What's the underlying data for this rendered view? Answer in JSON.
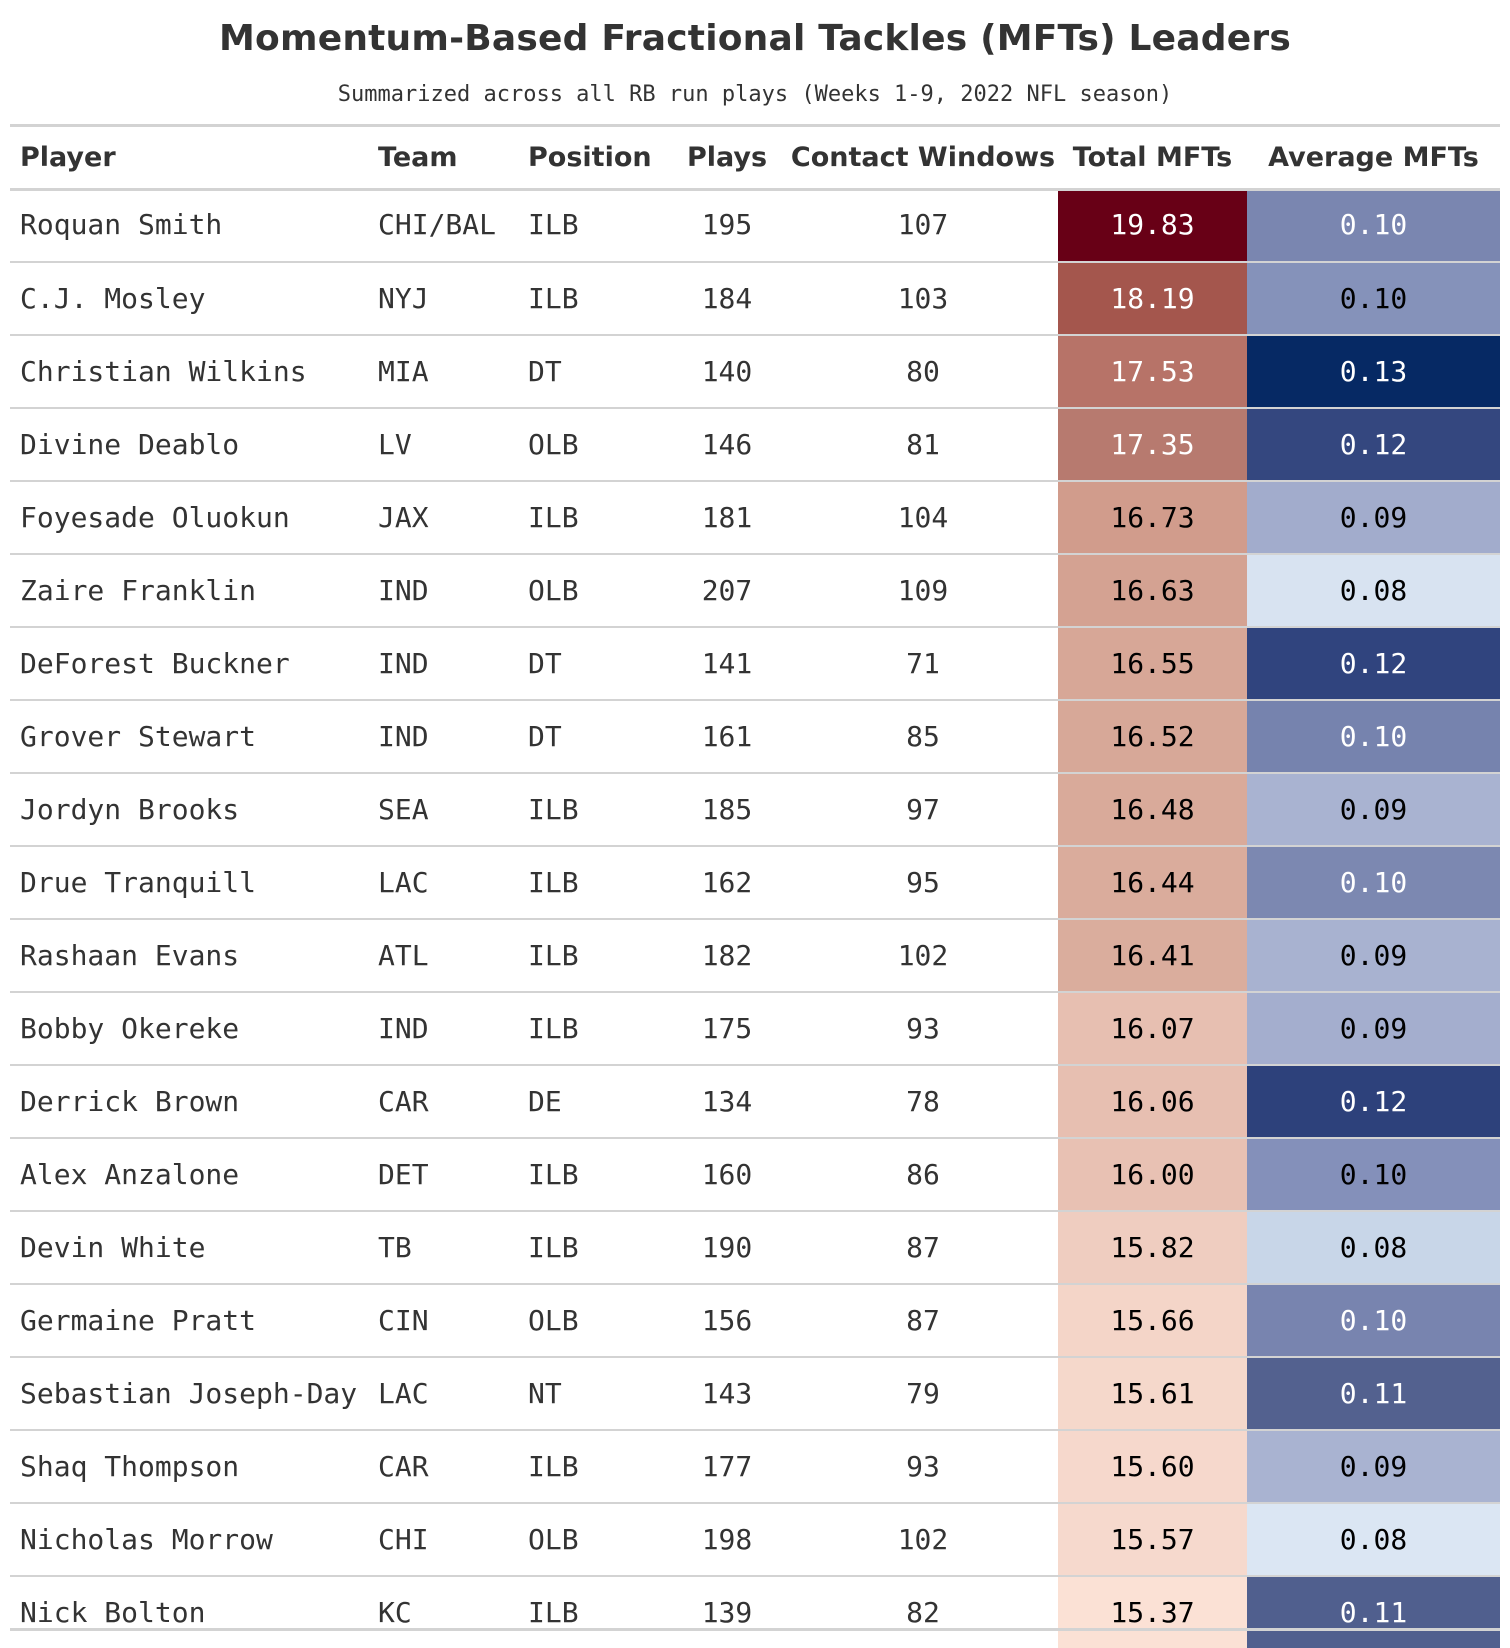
{
  "chart_data": {
    "type": "table",
    "title": "Momentum-Based Fractional Tackles (MFTs) Leaders",
    "subtitle": "Summarized across all RB run plays (Weeks 1-9, 2022 NFL season)",
    "columns": [
      "Player",
      "Team",
      "Position",
      "Plays",
      "Contact Windows",
      "Total MFTs",
      "Average MFTs"
    ],
    "rows": [
      {
        "player": "Roquan Smith",
        "team": "CHI/BAL",
        "position": "ILB",
        "plays": "195",
        "contact": "107",
        "total": "19.83",
        "avg": "0.10"
      },
      {
        "player": "C.J. Mosley",
        "team": "NYJ",
        "position": "ILB",
        "plays": "184",
        "contact": "103",
        "total": "18.19",
        "avg": "0.10"
      },
      {
        "player": "Christian Wilkins",
        "team": "MIA",
        "position": "DT",
        "plays": "140",
        "contact": "80",
        "total": "17.53",
        "avg": "0.13"
      },
      {
        "player": "Divine Deablo",
        "team": "LV",
        "position": "OLB",
        "plays": "146",
        "contact": "81",
        "total": "17.35",
        "avg": "0.12"
      },
      {
        "player": "Foyesade Oluokun",
        "team": "JAX",
        "position": "ILB",
        "plays": "181",
        "contact": "104",
        "total": "16.73",
        "avg": "0.09"
      },
      {
        "player": "Zaire Franklin",
        "team": "IND",
        "position": "OLB",
        "plays": "207",
        "contact": "109",
        "total": "16.63",
        "avg": "0.08"
      },
      {
        "player": "DeForest Buckner",
        "team": "IND",
        "position": "DT",
        "plays": "141",
        "contact": "71",
        "total": "16.55",
        "avg": "0.12"
      },
      {
        "player": "Grover Stewart",
        "team": "IND",
        "position": "DT",
        "plays": "161",
        "contact": "85",
        "total": "16.52",
        "avg": "0.10"
      },
      {
        "player": "Jordyn Brooks",
        "team": "SEA",
        "position": "ILB",
        "plays": "185",
        "contact": "97",
        "total": "16.48",
        "avg": "0.09"
      },
      {
        "player": "Drue Tranquill",
        "team": "LAC",
        "position": "ILB",
        "plays": "162",
        "contact": "95",
        "total": "16.44",
        "avg": "0.10"
      },
      {
        "player": "Rashaan Evans",
        "team": "ATL",
        "position": "ILB",
        "plays": "182",
        "contact": "102",
        "total": "16.41",
        "avg": "0.09"
      },
      {
        "player": "Bobby Okereke",
        "team": "IND",
        "position": "ILB",
        "plays": "175",
        "contact": "93",
        "total": "16.07",
        "avg": "0.09"
      },
      {
        "player": "Derrick Brown",
        "team": "CAR",
        "position": "DE",
        "plays": "134",
        "contact": "78",
        "total": "16.06",
        "avg": "0.12"
      },
      {
        "player": "Alex Anzalone",
        "team": "DET",
        "position": "ILB",
        "plays": "160",
        "contact": "86",
        "total": "16.00",
        "avg": "0.10"
      },
      {
        "player": "Devin White",
        "team": "TB",
        "position": "ILB",
        "plays": "190",
        "contact": "87",
        "total": "15.82",
        "avg": "0.08"
      },
      {
        "player": "Germaine Pratt",
        "team": "CIN",
        "position": "OLB",
        "plays": "156",
        "contact": "87",
        "total": "15.66",
        "avg": "0.10"
      },
      {
        "player": "Sebastian Joseph-Day",
        "team": "LAC",
        "position": "NT",
        "plays": "143",
        "contact": "79",
        "total": "15.61",
        "avg": "0.11"
      },
      {
        "player": "Shaq Thompson",
        "team": "CAR",
        "position": "ILB",
        "plays": "177",
        "contact": "93",
        "total": "15.60",
        "avg": "0.09"
      },
      {
        "player": "Nicholas Morrow",
        "team": "CHI",
        "position": "OLB",
        "plays": "198",
        "contact": "102",
        "total": "15.57",
        "avg": "0.08"
      },
      {
        "player": "Nick Bolton",
        "team": "KC",
        "position": "ILB",
        "plays": "139",
        "contact": "82",
        "total": "15.37",
        "avg": "0.11"
      }
    ],
    "colors": {
      "total_mfts": [
        "#680016",
        "#a4564d",
        "#b77368",
        "#b77a6f",
        "#d19c8c",
        "#d4a292",
        "#d7a797",
        "#d7a898",
        "#d9aa9a",
        "#daac9c",
        "#daad9d",
        "#e7bfb1",
        "#e7bfb1",
        "#e8c1b3",
        "#efcdc0",
        "#f4d5c8",
        "#f5d8cb",
        "#f6d8cc",
        "#f6d9cd",
        "#fbe1d5"
      ],
      "average_mfts": [
        "#7a86b0",
        "#8592ba",
        "#062964",
        "#34477f",
        "#a2accc",
        "#d8e3f1",
        "#30447e",
        "#7683ae",
        "#a9b3d1",
        "#7c88b1",
        "#a8b2d0",
        "#a4aece",
        "#2d417b",
        "#8490ba",
        "#c8d6e8",
        "#7884af",
        "#53618f",
        "#a9b3d1",
        "#dbe6f3",
        "#505f8e"
      ]
    }
  }
}
